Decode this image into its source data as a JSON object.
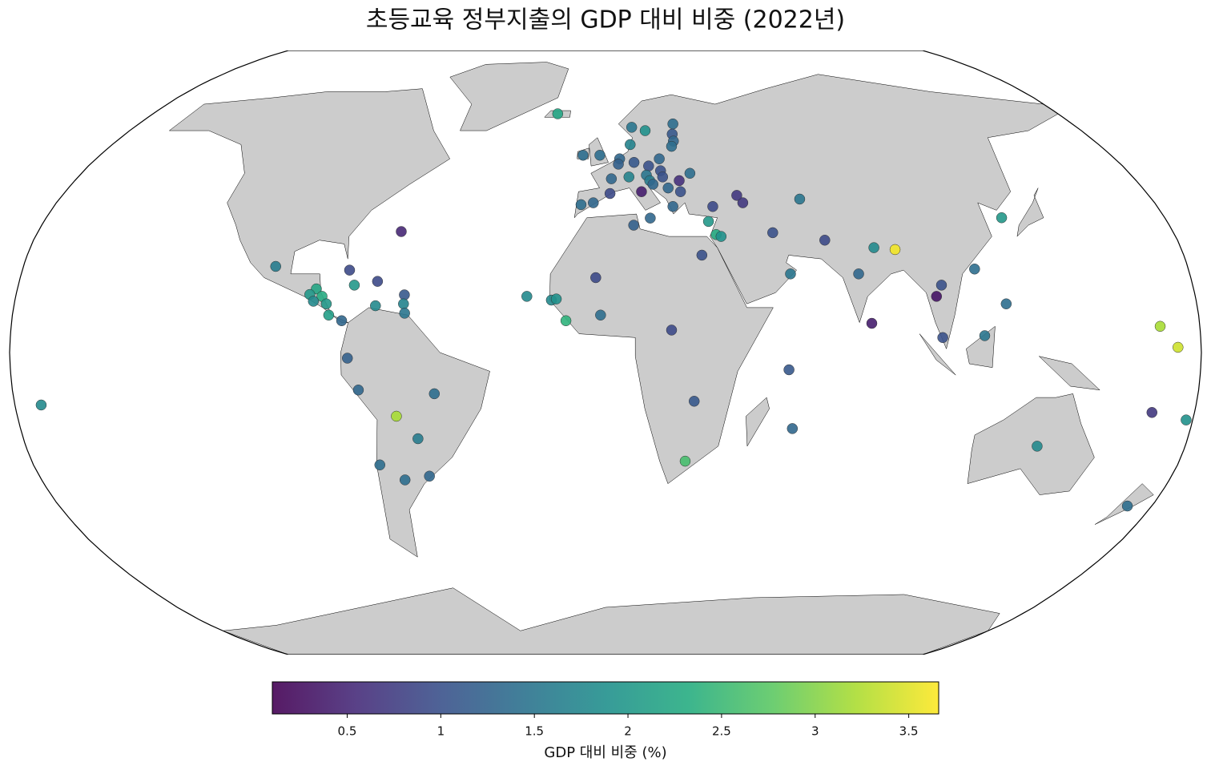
{
  "chart_data": {
    "type": "scatter-map",
    "projection": "robinson",
    "title": "초등교육 정부지출의 GDP 대비 비중 (2022년)",
    "colorbar_label": "GDP 대비 비중 (%)",
    "colormap": "viridis",
    "vlim": [
      0.1,
      3.66
    ],
    "colorbar_ticks": [
      0.5,
      1.0,
      1.5,
      2.0,
      2.5,
      3.0,
      3.5
    ],
    "land_color": "#cccccc",
    "points": [
      {
        "lon": -19,
        "lat": 65,
        "value": 2.2
      },
      {
        "lon": 10,
        "lat": 61,
        "value": 1.5
      },
      {
        "lon": 15,
        "lat": 60,
        "value": 1.9
      },
      {
        "lon": 26,
        "lat": 62,
        "value": 1.4
      },
      {
        "lon": 25,
        "lat": 59,
        "value": 1.1
      },
      {
        "lon": 25,
        "lat": 57,
        "value": 1.3
      },
      {
        "lon": 24,
        "lat": 55.5,
        "value": 1.4
      },
      {
        "lon": 9,
        "lat": 56,
        "value": 1.7
      },
      {
        "lon": -2,
        "lat": 53,
        "value": 1.4
      },
      {
        "lon": -8,
        "lat": 53,
        "value": 1.4
      },
      {
        "lon": 5,
        "lat": 52,
        "value": 1.3
      },
      {
        "lon": 4.5,
        "lat": 50.5,
        "value": 1.2
      },
      {
        "lon": 10,
        "lat": 51,
        "value": 1.1
      },
      {
        "lon": 19,
        "lat": 52,
        "value": 1.3
      },
      {
        "lon": 15,
        "lat": 50,
        "value": 1.0
      },
      {
        "lon": 19,
        "lat": 48.7,
        "value": 1.0
      },
      {
        "lon": 14,
        "lat": 47.5,
        "value": 1.5
      },
      {
        "lon": 8,
        "lat": 47,
        "value": 1.7
      },
      {
        "lon": 2,
        "lat": 46.5,
        "value": 1.3
      },
      {
        "lon": 19.5,
        "lat": 47,
        "value": 1.0
      },
      {
        "lon": 25,
        "lat": 46,
        "value": 0.6
      },
      {
        "lon": 29,
        "lat": 48,
        "value": 1.4
      },
      {
        "lon": 15,
        "lat": 46,
        "value": 1.6
      },
      {
        "lon": 16,
        "lat": 45,
        "value": 1.3
      },
      {
        "lon": 12,
        "lat": 43,
        "value": 0.4
      },
      {
        "lon": 21,
        "lat": 44,
        "value": 1.3
      },
      {
        "lon": 25,
        "lat": 43,
        "value": 1.0
      },
      {
        "lon": -8,
        "lat": 39.5,
        "value": 1.4
      },
      {
        "lon": -4,
        "lat": 40,
        "value": 1.3
      },
      {
        "lon": 1.5,
        "lat": 42.5,
        "value": 0.9
      },
      {
        "lon": 22,
        "lat": 39,
        "value": 1.3
      },
      {
        "lon": 14.4,
        "lat": 35.9,
        "value": 1.3
      },
      {
        "lon": 35,
        "lat": 39,
        "value": 0.9
      },
      {
        "lon": 33,
        "lat": 35,
        "value": 2.0
      },
      {
        "lon": 35,
        "lat": 31.5,
        "value": 2.3
      },
      {
        "lon": 36.5,
        "lat": 31,
        "value": 1.9
      },
      {
        "lon": 45,
        "lat": 40,
        "value": 0.7
      },
      {
        "lon": 43.5,
        "lat": 42,
        "value": 0.7
      },
      {
        "lon": 64,
        "lat": 41,
        "value": 1.5
      },
      {
        "lon": 53,
        "lat": 32,
        "value": 1.0
      },
      {
        "lon": 69,
        "lat": 30,
        "value": 0.9
      },
      {
        "lon": 57,
        "lat": 21,
        "value": 1.5
      },
      {
        "lon": 84,
        "lat": 28,
        "value": 1.8
      },
      {
        "lon": 90.5,
        "lat": 27.5,
        "value": 3.6
      },
      {
        "lon": 78,
        "lat": 21,
        "value": 1.3
      },
      {
        "lon": 80.7,
        "lat": 7.8,
        "value": 0.4
      },
      {
        "lon": 101,
        "lat": 15,
        "value": 0.3
      },
      {
        "lon": 103,
        "lat": 18,
        "value": 1.0
      },
      {
        "lon": 122,
        "lat": 13,
        "value": 1.4
      },
      {
        "lon": 102,
        "lat": 4,
        "value": 1.0
      },
      {
        "lon": 114.7,
        "lat": 4.5,
        "value": 1.5
      },
      {
        "lon": 114,
        "lat": 22.3,
        "value": 1.4
      },
      {
        "lon": 127.5,
        "lat": 36,
        "value": 2.0
      },
      {
        "lon": 134,
        "lat": -25,
        "value": 1.8
      },
      {
        "lon": 172,
        "lat": -41,
        "value": 1.4
      },
      {
        "lon": -172,
        "lat": -14,
        "value": 1.8
      },
      {
        "lon": 178,
        "lat": -18,
        "value": 1.9
      },
      {
        "lon": 167,
        "lat": -16,
        "value": 0.7
      },
      {
        "lon": 168,
        "lat": 7,
        "value": 3.2
      },
      {
        "lon": 173,
        "lat": 1.4,
        "value": 3.4
      },
      {
        "lon": 57.5,
        "lat": -20.3,
        "value": 1.3
      },
      {
        "lon": 55.5,
        "lat": -4.6,
        "value": 1.1
      },
      {
        "lon": 27,
        "lat": -13,
        "value": 1.1
      },
      {
        "lon": 25,
        "lat": -29,
        "value": 2.6
      },
      {
        "lon": 20,
        "lat": 6,
        "value": 0.9
      },
      {
        "lon": -24,
        "lat": 15,
        "value": 1.8
      },
      {
        "lon": -16.5,
        "lat": 14,
        "value": 1.8
      },
      {
        "lon": -15,
        "lat": 14.3,
        "value": 1.9
      },
      {
        "lon": -12,
        "lat": 8.5,
        "value": 2.4
      },
      {
        "lon": -1.5,
        "lat": 10,
        "value": 1.4
      },
      {
        "lon": 9,
        "lat": 34,
        "value": 1.2
      },
      {
        "lon": -3,
        "lat": 20,
        "value": 0.9
      },
      {
        "lon": 30,
        "lat": 26,
        "value": 1.0
      },
      {
        "lon": -102,
        "lat": 23,
        "value": 1.6
      },
      {
        "lon": -79,
        "lat": 22,
        "value": 0.9
      },
      {
        "lon": -70,
        "lat": 19,
        "value": 0.9
      },
      {
        "lon": -77,
        "lat": 18,
        "value": 2.0
      },
      {
        "lon": -88.5,
        "lat": 17,
        "value": 2.2
      },
      {
        "lon": -90.3,
        "lat": 15.5,
        "value": 2.0
      },
      {
        "lon": -86.5,
        "lat": 15,
        "value": 2.3
      },
      {
        "lon": -89,
        "lat": 13.7,
        "value": 1.8
      },
      {
        "lon": -85,
        "lat": 13,
        "value": 2.0
      },
      {
        "lon": -84,
        "lat": 10,
        "value": 2.1
      },
      {
        "lon": -80,
        "lat": 8.5,
        "value": 1.3
      },
      {
        "lon": -78,
        "lat": -1.5,
        "value": 1.2
      },
      {
        "lon": -75,
        "lat": -10,
        "value": 1.3
      },
      {
        "lon": -52,
        "lat": -11,
        "value": 1.4
      },
      {
        "lon": -64,
        "lat": -17,
        "value": 3.2
      },
      {
        "lon": -58,
        "lat": -23,
        "value": 1.6
      },
      {
        "lon": -71,
        "lat": -30,
        "value": 1.4
      },
      {
        "lon": -64,
        "lat": -34,
        "value": 1.4
      },
      {
        "lon": -56,
        "lat": -33,
        "value": 1.3
      },
      {
        "lon": -64.8,
        "lat": 32.3,
        "value": 0.5
      },
      {
        "lon": -61.4,
        "lat": 15.4,
        "value": 1.1
      },
      {
        "lon": -61.5,
        "lat": 13,
        "value": 1.7
      },
      {
        "lon": -61,
        "lat": 10.5,
        "value": 1.5
      },
      {
        "lon": -70,
        "lat": 12.5,
        "value": 1.8
      }
    ]
  }
}
